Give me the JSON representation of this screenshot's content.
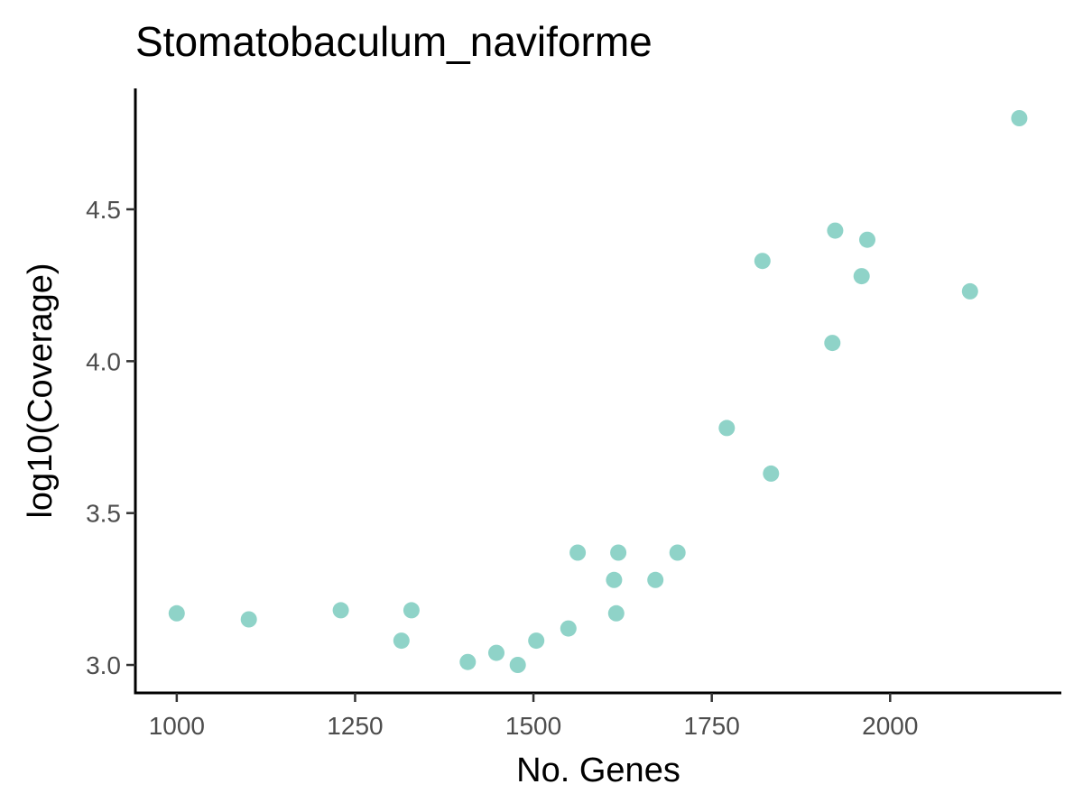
{
  "chart_data": {
    "type": "scatter",
    "title": "Stomatobaculum_naviforme",
    "xlabel": "No. Genes",
    "ylabel": "log10(Coverage)",
    "xlim": [
      942,
      2240
    ],
    "ylim": [
      2.908,
      4.898
    ],
    "xticks": [
      1000,
      1250,
      1500,
      1750,
      2000
    ],
    "yticks": [
      3.0,
      3.5,
      4.0,
      4.5
    ],
    "xtick_labels": [
      "1000",
      "1250",
      "1500",
      "1750",
      "2000"
    ],
    "ytick_labels": [
      "3.0",
      "3.5",
      "4.0",
      "4.5"
    ],
    "grid": false,
    "legend": "none",
    "point_color": "#8fd3c8",
    "points": [
      {
        "x": 1000,
        "y": 3.17
      },
      {
        "x": 1101,
        "y": 3.15
      },
      {
        "x": 1230,
        "y": 3.18
      },
      {
        "x": 1315,
        "y": 3.08
      },
      {
        "x": 1329,
        "y": 3.18
      },
      {
        "x": 1408,
        "y": 3.01
      },
      {
        "x": 1448,
        "y": 3.04
      },
      {
        "x": 1478,
        "y": 3.0
      },
      {
        "x": 1504,
        "y": 3.08
      },
      {
        "x": 1549,
        "y": 3.12
      },
      {
        "x": 1562,
        "y": 3.37
      },
      {
        "x": 1613,
        "y": 3.28
      },
      {
        "x": 1616,
        "y": 3.17
      },
      {
        "x": 1619,
        "y": 3.37
      },
      {
        "x": 1671,
        "y": 3.28
      },
      {
        "x": 1702,
        "y": 3.37
      },
      {
        "x": 1771,
        "y": 3.78
      },
      {
        "x": 1821,
        "y": 4.33
      },
      {
        "x": 1833,
        "y": 3.63
      },
      {
        "x": 1919,
        "y": 4.06
      },
      {
        "x": 1923,
        "y": 4.43
      },
      {
        "x": 1960,
        "y": 4.28
      },
      {
        "x": 1968,
        "y": 4.4
      },
      {
        "x": 2112,
        "y": 4.23
      },
      {
        "x": 2181,
        "y": 4.8
      }
    ]
  }
}
